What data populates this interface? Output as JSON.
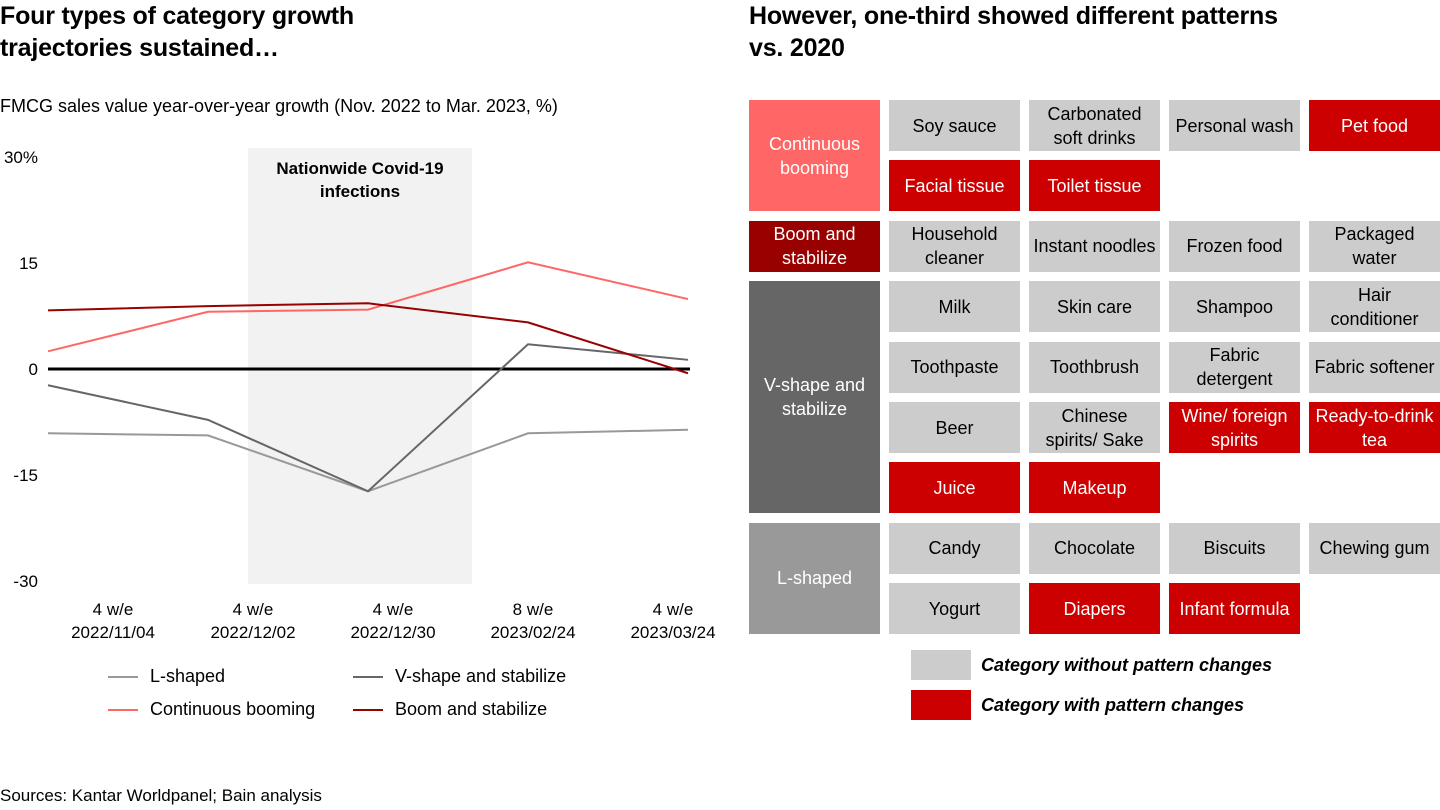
{
  "left": {
    "title": "Four types of category growth trajectories sustained…",
    "subtitle": "FMCG sales value year-over-year growth (Nov. 2022 to Mar. 2023, %)",
    "shaded_annotation": [
      "Nationwide Covid-19",
      "infections"
    ]
  },
  "chart_data": {
    "type": "line",
    "title": "Four types of category growth trajectories sustained…",
    "subtitle": "FMCG sales value year-over-year growth (Nov. 2022 to Mar. 2023, %)",
    "xlabel": "",
    "ylabel": "",
    "categories": [
      [
        "4 w/e",
        "2022/11/04"
      ],
      [
        "4 w/e",
        "2022/12/02"
      ],
      [
        "4 w/e",
        "2022/12/30"
      ],
      [
        "8 w/e",
        "2023/02/24"
      ],
      [
        "4 w/e",
        "2023/03/24"
      ]
    ],
    "y_ticks": [
      "30%",
      "15",
      "0",
      "-15",
      "-30"
    ],
    "y_tick_values": [
      30,
      15,
      0,
      -15,
      -30
    ],
    "ylim": [
      -30,
      30
    ],
    "grid": false,
    "zero_line": true,
    "shaded_region": {
      "label": "Nationwide Covid-19 infections",
      "from_category_index": 1.25,
      "to_category_index": 2.65,
      "color": "#f2f2f2"
    },
    "series": [
      {
        "name": "L-shaped",
        "color": "#999999",
        "values": [
          -9.1,
          -9.4,
          -17.3,
          -9.1,
          -8.6
        ]
      },
      {
        "name": "V-shape and stabilize",
        "color": "#666666",
        "values": [
          -2.3,
          -7.2,
          -17.3,
          3.5,
          1.3
        ]
      },
      {
        "name": "Continuous booming",
        "color": "#ff6666",
        "values": [
          2.5,
          8.1,
          8.4,
          15.1,
          9.9
        ]
      },
      {
        "name": "Boom and stabilize",
        "color": "#990000",
        "values": [
          8.3,
          8.9,
          9.3,
          6.6,
          -0.6
        ]
      }
    ],
    "legend": "bottom"
  },
  "right": {
    "title": "However, one-third showed different patterns vs. 2020",
    "groups": [
      {
        "name": "Continuous booming",
        "color": "#ff6666",
        "rows": [
          [
            {
              "label": "Soy sauce",
              "changed": false
            },
            {
              "label": "Carbonated soft drinks",
              "changed": false
            },
            {
              "label": "Personal wash",
              "changed": false
            },
            {
              "label": "Pet food",
              "changed": true
            }
          ],
          [
            {
              "label": "Facial tissue",
              "changed": true
            },
            {
              "label": "Toilet tissue",
              "changed": true
            }
          ]
        ]
      },
      {
        "name": "Boom and stabilize",
        "color": "#990000",
        "rows": [
          [
            {
              "label": "Household cleaner",
              "changed": false
            },
            {
              "label": "Instant noodles",
              "changed": false
            },
            {
              "label": "Frozen food",
              "changed": false
            },
            {
              "label": "Packaged water",
              "changed": false
            }
          ]
        ]
      },
      {
        "name": "V-shape and stabilize",
        "color": "#666666",
        "rows": [
          [
            {
              "label": "Milk",
              "changed": false
            },
            {
              "label": "Skin care",
              "changed": false
            },
            {
              "label": "Shampoo",
              "changed": false
            },
            {
              "label": "Hair conditioner",
              "changed": false
            }
          ],
          [
            {
              "label": "Toothpaste",
              "changed": false
            },
            {
              "label": "Toothbrush",
              "changed": false
            },
            {
              "label": "Fabric detergent",
              "changed": false
            },
            {
              "label": "Fabric softener",
              "changed": false
            }
          ],
          [
            {
              "label": "Beer",
              "changed": false
            },
            {
              "label": "Chinese spirits/ Sake",
              "changed": false
            },
            {
              "label": "Wine/ foreign spirits",
              "changed": true
            },
            {
              "label": "Ready-to-drink tea",
              "changed": true
            }
          ],
          [
            {
              "label": "Juice",
              "changed": true
            },
            {
              "label": "Makeup",
              "changed": true
            }
          ]
        ]
      },
      {
        "name": "L-shaped",
        "color": "#999999",
        "rows": [
          [
            {
              "label": "Candy",
              "changed": false
            },
            {
              "label": "Chocolate",
              "changed": false
            },
            {
              "label": "Biscuits",
              "changed": false
            },
            {
              "label": "Chewing gum",
              "changed": false
            }
          ],
          [
            {
              "label": "Yogurt",
              "changed": false
            },
            {
              "label": "Diapers",
              "changed": true
            },
            {
              "label": "Infant formula",
              "changed": true
            }
          ]
        ]
      }
    ],
    "legend": [
      {
        "label": "Category without pattern changes",
        "color": "#cccccc"
      },
      {
        "label": "Category with pattern changes",
        "color": "#cc0000"
      }
    ]
  },
  "colors": {
    "changed": "#cc0000",
    "unchanged": "#cccccc"
  },
  "sources": "Sources: Kantar Worldpanel; Bain analysis"
}
